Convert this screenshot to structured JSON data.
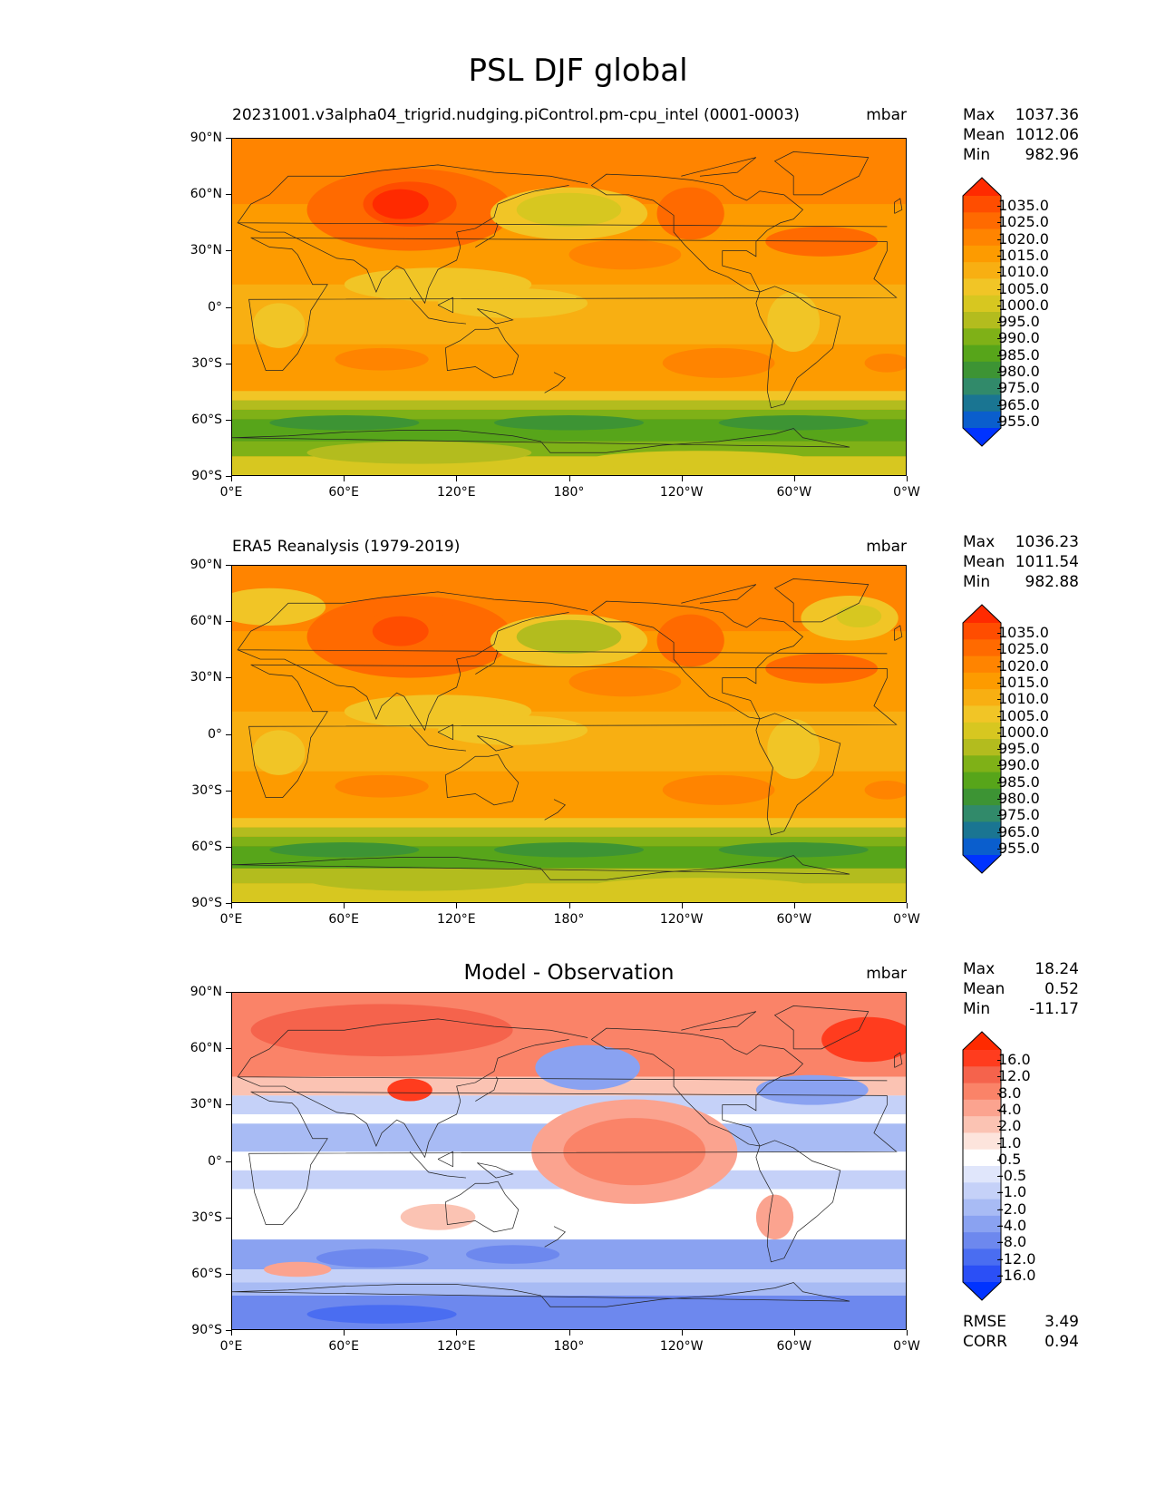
{
  "title": "PSL DJF global",
  "axes": {
    "lat_labels": [
      "90°N",
      "60°N",
      "30°N",
      "0°",
      "30°S",
      "60°S",
      "90°S"
    ],
    "lon_labels": [
      "0°E",
      "60°E",
      "120°E",
      "180°",
      "120°W",
      "60°W",
      "0°W"
    ]
  },
  "panels": [
    {
      "subtitle": "20231001.v3alpha04_trigrid.nudging.piControl.pm-cpu_intel (0001-0003)",
      "units": "mbar",
      "stats": [
        {
          "label": "Max",
          "value": "1037.36"
        },
        {
          "label": "Mean",
          "value": "1012.06"
        },
        {
          "label": "Min",
          "value": "982.96"
        }
      ],
      "colorbar_labels": [
        "1035.0",
        "1025.0",
        "1020.0",
        "1015.0",
        "1010.0",
        "1005.0",
        "1000.0",
        "995.0",
        "990.0",
        "985.0",
        "980.0",
        "975.0",
        "965.0",
        "955.0"
      ]
    },
    {
      "subtitle": "ERA5 Reanalysis (1979-2019)",
      "units": "mbar",
      "stats": [
        {
          "label": "Max",
          "value": "1036.23"
        },
        {
          "label": "Mean",
          "value": "1011.54"
        },
        {
          "label": "Min",
          "value": "982.88"
        }
      ],
      "colorbar_labels": [
        "1035.0",
        "1025.0",
        "1020.0",
        "1015.0",
        "1010.0",
        "1005.0",
        "1000.0",
        "995.0",
        "990.0",
        "985.0",
        "980.0",
        "975.0",
        "965.0",
        "955.0"
      ]
    },
    {
      "subtitle": "Model - Observation",
      "units": "mbar",
      "stats": [
        {
          "label": "Max",
          "value": "18.24"
        },
        {
          "label": "Mean",
          "value": "0.52"
        },
        {
          "label": "Min",
          "value": "-11.17"
        }
      ],
      "extra_stats": [
        {
          "label": "RMSE",
          "value": "3.49"
        },
        {
          "label": "CORR",
          "value": "0.94"
        }
      ],
      "colorbar_labels": [
        "16.0",
        "12.0",
        "8.0",
        "4.0",
        "2.0",
        "1.0",
        "0.5",
        "-0.5",
        "-1.0",
        "-2.0",
        "-4.0",
        "-8.0",
        "-12.0",
        "-16.0"
      ]
    }
  ],
  "colors": {
    "psl_scale": [
      "#ff2a00",
      "#ff4d00",
      "#ff6a00",
      "#ff8400",
      "#fd9b00",
      "#f8af12",
      "#f1c526",
      "#d7c720",
      "#b3bc1e",
      "#7fb117",
      "#57a51a",
      "#3d9434",
      "#318a6a",
      "#1a7592",
      "#0a5ecd",
      "#0033ff"
    ],
    "diff_scale": [
      "#ff2a00",
      "#ff3c1e",
      "#f5634c",
      "#fa8368",
      "#fba38f",
      "#fbc3b3",
      "#fde4dc",
      "#ffffff",
      "#e0e6fb",
      "#c5d1f8",
      "#a8bbf4",
      "#8aa2f1",
      "#6d88ee",
      "#4a6df1",
      "#2b4ff6",
      "#0033ff"
    ]
  }
}
